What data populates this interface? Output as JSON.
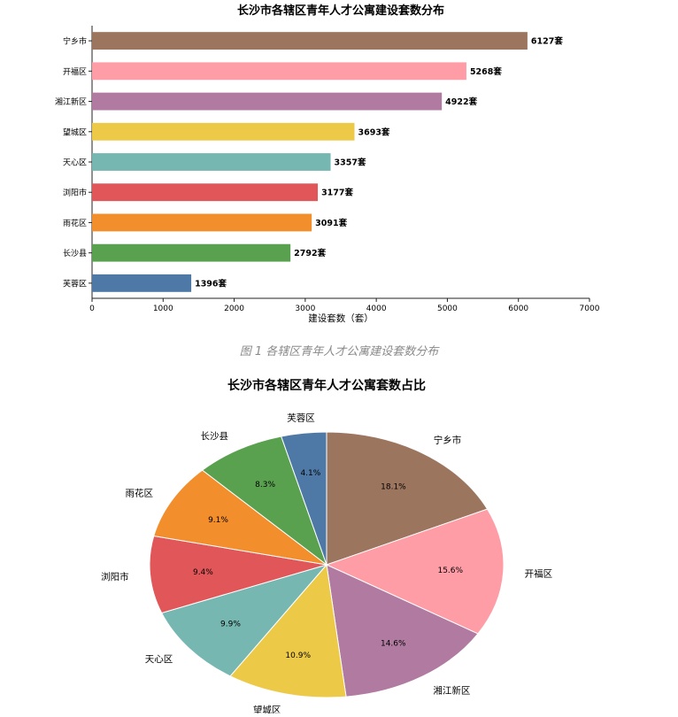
{
  "chart_data": [
    {
      "type": "bar",
      "orientation": "horizontal",
      "title": "长沙市各辖区青年人才公寓建设套数分布",
      "xlabel": "建设套数（套）",
      "ylabel": "",
      "xlim": [
        0,
        7000
      ],
      "xticks": [
        "0",
        "1000",
        "2000",
        "3000",
        "4000",
        "5000",
        "6000",
        "7000"
      ],
      "grid": false,
      "value_suffix": "套",
      "categories": [
        "芙蓉区",
        "长沙县",
        "雨花区",
        "浏阳市",
        "天心区",
        "望城区",
        "湘江新区",
        "开福区",
        "宁乡市"
      ],
      "values": [
        1396,
        2792,
        3091,
        3177,
        3357,
        3693,
        4922,
        5268,
        6127
      ],
      "colors": [
        "#4e79a7",
        "#59a14f",
        "#f28e2b",
        "#e15759",
        "#76b7b2",
        "#edc948",
        "#b07aa1",
        "#ff9da7",
        "#9c755f"
      ]
    },
    {
      "type": "pie",
      "title": "长沙市各辖区青年人才公寓套数占比",
      "start": "top",
      "direction": "clockwise",
      "labels": [
        "宁乡市",
        "开福区",
        "湘江新区",
        "望城区",
        "天心区",
        "浏阳市",
        "雨花区",
        "长沙县",
        "芙蓉区"
      ],
      "values": [
        6127,
        5268,
        4922,
        3693,
        3357,
        3177,
        3091,
        2792,
        1396
      ],
      "percent_labels": [
        "18.1%",
        "15.6%",
        "14.6%",
        "10.9%",
        "9.9%",
        "9.4%",
        "9.1%",
        "8.3%",
        "4.1%"
      ],
      "colors": [
        "#9c755f",
        "#ff9da7",
        "#b07aa1",
        "#edc948",
        "#76b7b2",
        "#e15759",
        "#f28e2b",
        "#59a14f",
        "#4e79a7"
      ]
    }
  ],
  "caption": "图 1  各辖区青年人才公寓建设套数分布"
}
